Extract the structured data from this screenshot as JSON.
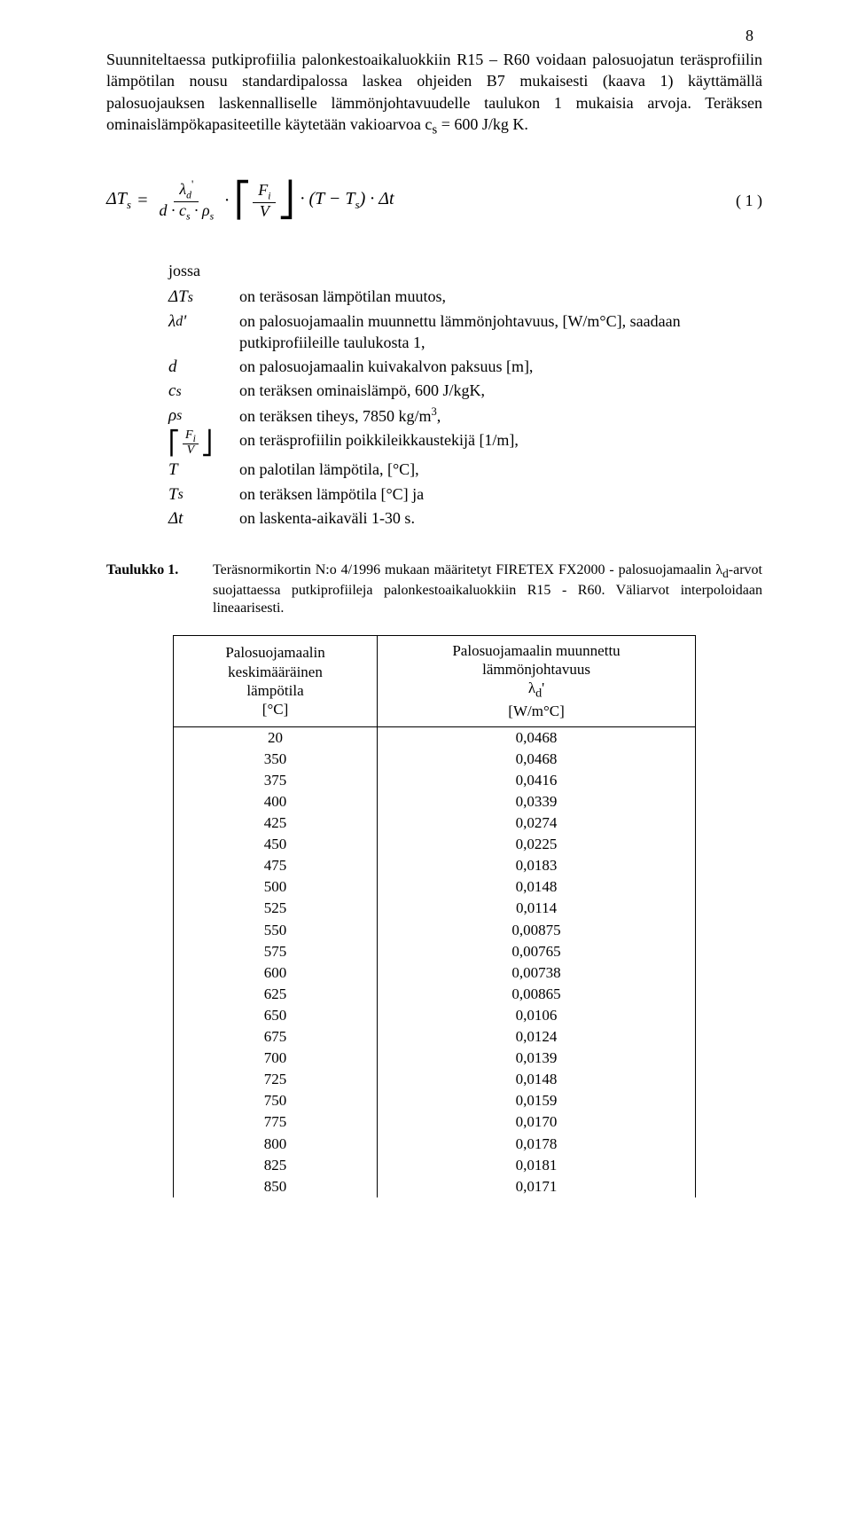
{
  "page_number": "8",
  "intro_text": "Suunniteltaessa putkiprofiilia palonkestoaikaluokkiin R15 – R60 voidaan palosuojatun teräsprofiilin lämpötilan nousu standardipalossa laskea ohjeiden B7 mukaisesti (kaava 1) käyttämällä palosuojauksen laskennalliselle lämmönjohtavuudelle taulukon 1 mukaisia arvoja. Teräksen ominaislämpökapasiteetille käytetään vakioarvoa c",
  "intro_text_tail": " = 600 J/kg K.",
  "intro_sub": "s",
  "formula": {
    "lhs_delta": "Δ",
    "lhs_T": "T",
    "lhs_sub": "s",
    "eq": " = ",
    "frac1_num_lambda": "λ",
    "frac1_num_sub": "d",
    "frac1_num_prime": "'",
    "frac1_den": "d · c",
    "frac1_den_sub1": "s",
    "frac1_den_mid": " · ρ",
    "frac1_den_sub2": "s",
    "dot": "·",
    "frac2_num_F": "F",
    "frac2_num_sub": "i",
    "frac2_den": "V",
    "tail1": "· (T − T",
    "tail_sub": "s",
    "tail2": ") · Δt",
    "label": "( 1 )"
  },
  "defs": {
    "heading": "jossa",
    "rows": [
      {
        "sym_html": "ΔT<sub>s</sub>",
        "text_html": "on teräsosan lämpötilan muutos,"
      },
      {
        "sym_html": "λ<sub>d</sub>'",
        "text_html": "on palosuojamaalin muunnettu lämmönjohtavuus, [W/m°C], saadaan putkiprofiileille taulukosta 1,"
      },
      {
        "sym_html": "d",
        "text_html": "on palosuojamaalin kuivakalvon paksuus [m],"
      },
      {
        "sym_html": "c<sub>s</sub>",
        "text_html": "on teräksen ominaislämpö, 600 J/kgK,"
      },
      {
        "sym_html": "ρ<sub>s</sub>",
        "text_html": "on teräksen tiheys, 7850 kg/m<sup>3</sup>,"
      },
      {
        "sym_html": "__FRAC__",
        "text_html": "on teräsprofiilin poikkileikkaustekijä [1/m],"
      },
      {
        "sym_html": "T",
        "text_html": "on palotilan lämpötila, [°C],"
      },
      {
        "sym_html": "T<sub>s</sub>",
        "text_html": "on teräksen lämpötila [°C] ja"
      },
      {
        "sym_html": "Δt",
        "text_html": "on laskenta-aikaväli 1-30 s."
      }
    ]
  },
  "table_caption": {
    "label": "Taulukko 1.",
    "text_html": "Teräsnormikortin N:o 4/1996 mukaan määritetyt FIRETEX FX2000 - palosuojamaalin λ<sub>d</sub>-arvot suojattaessa putkiprofiileja palonkestoaikaluokkiin R15 - R60. Väliarvot interpoloidaan lineaarisesti."
  },
  "table": {
    "type": "table",
    "columns": [
      "Palosuojamaalin<br>keskimääräinen<br>lämpötila<br>[°C]",
      "Palosuojamaalin muunnettu<br>lämmönjohtavuus<br>λ<sub>d</sub>'<br>[W/m°C]"
    ],
    "rows": [
      [
        "20",
        "0,0468"
      ],
      [
        "350",
        "0,0468"
      ],
      [
        "375",
        "0,0416"
      ],
      [
        "400",
        "0,0339"
      ],
      [
        "425",
        "0,0274"
      ],
      [
        "450",
        "0,0225"
      ],
      [
        "475",
        "0,0183"
      ],
      [
        "500",
        "0,0148"
      ],
      [
        "525",
        "0,0114"
      ],
      [
        "550",
        "0,00875"
      ],
      [
        "575",
        "0,00765"
      ],
      [
        "600",
        "0,00738"
      ],
      [
        "625",
        "0,00865"
      ],
      [
        "650",
        "0,0106"
      ],
      [
        "675",
        "0,0124"
      ],
      [
        "700",
        "0,0139"
      ],
      [
        "725",
        "0,0148"
      ],
      [
        "750",
        "0,0159"
      ],
      [
        "775",
        "0,0170"
      ],
      [
        "800",
        "0,0178"
      ],
      [
        "825",
        "0,0181"
      ],
      [
        "850",
        "0,0171"
      ]
    ],
    "col_widths": [
      "50%",
      "50%"
    ],
    "border_color": "#000000",
    "background_color": "#ffffff",
    "font_size": 17
  },
  "colors": {
    "text": "#000000",
    "background": "#ffffff"
  }
}
